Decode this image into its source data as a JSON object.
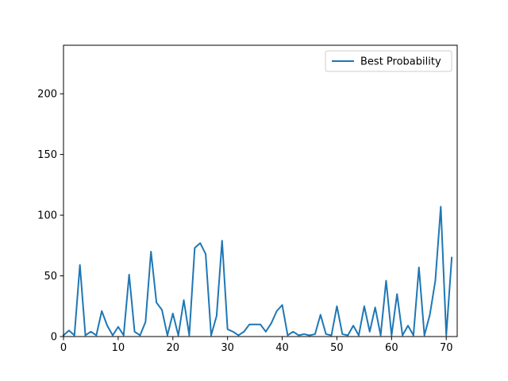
{
  "chart_data": {
    "type": "line",
    "title": "",
    "xlabel": "",
    "ylabel": "",
    "xlim": [
      0,
      72
    ],
    "ylim": [
      0,
      240
    ],
    "xticks": [
      0,
      10,
      20,
      30,
      40,
      50,
      60,
      70
    ],
    "yticks": [
      0,
      50,
      100,
      150,
      200
    ],
    "legend": {
      "placement": "upper-right"
    },
    "grid": false,
    "series": [
      {
        "name": "Best Probability",
        "color": "#1f77b4",
        "x": [
          0,
          1,
          2,
          3,
          4,
          5,
          6,
          7,
          8,
          9,
          10,
          11,
          12,
          13,
          14,
          15,
          16,
          17,
          18,
          19,
          20,
          21,
          22,
          23,
          24,
          25,
          26,
          27,
          28,
          29,
          30,
          31,
          32,
          33,
          34,
          35,
          36,
          37,
          38,
          39,
          40,
          41,
          42,
          43,
          44,
          45,
          46,
          47,
          48,
          49,
          50,
          51,
          52,
          53,
          54,
          55,
          56,
          57,
          58,
          59,
          60,
          61,
          62,
          63,
          64,
          65,
          66,
          67,
          68,
          69,
          70,
          71
        ],
        "y": [
          1,
          5,
          1,
          59,
          1,
          4,
          1,
          21,
          9,
          1,
          8,
          1,
          51,
          4,
          1,
          12,
          70,
          28,
          22,
          1,
          19,
          1,
          30,
          1,
          73,
          77,
          68,
          1,
          17,
          79,
          6,
          4,
          1,
          4,
          10,
          10,
          10,
          4,
          11,
          21,
          26,
          1,
          4,
          1,
          2,
          1,
          2,
          18,
          2,
          1,
          25,
          2,
          1,
          9,
          1,
          25,
          4,
          24,
          1,
          46,
          1,
          35,
          1,
          9,
          1,
          57,
          1,
          18,
          46,
          107,
          1,
          65
        ]
      }
    ]
  }
}
